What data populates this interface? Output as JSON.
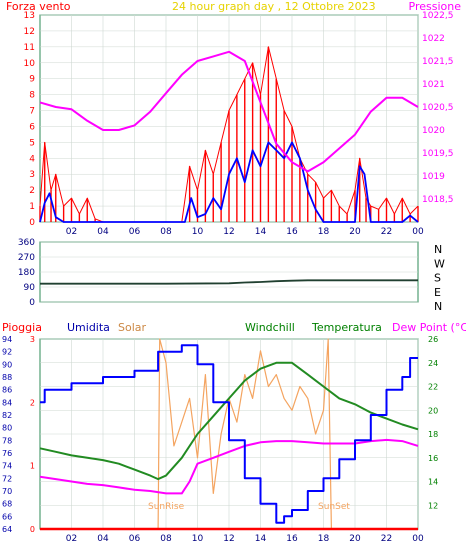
{
  "colors": {
    "bg": "#ffffff",
    "plot_bg": "#ffffff",
    "grid": "#cfd8d2",
    "axis_green": "#2e8b57",
    "title": "#e6d200",
    "wind": "#ff0000",
    "gust": "#0000ff",
    "pressure": "#ff00ff",
    "direction": "#204030",
    "rain": "#ff0000",
    "humidity": "#0000ff",
    "solar": "#f4a460",
    "windchill": "#00aa00",
    "temperature": "#228b22",
    "dewpoint": "#ff00ff"
  },
  "chart_data": [
    {
      "type": "line",
      "title": "24 hour graph day , 12 Ottobre 2023",
      "left_label": "Forza vento",
      "right_label": "Pressione",
      "x_ticks": [
        "02",
        "04",
        "06",
        "08",
        "10",
        "12",
        "14",
        "16",
        "18",
        "20",
        "22",
        "00"
      ],
      "ylim_left": [
        0,
        13
      ],
      "yticks_left": [
        "0",
        "1",
        "2",
        "3",
        "4",
        "5",
        "6",
        "7",
        "8",
        "9",
        "10",
        "11",
        "12",
        "13"
      ],
      "ylim_right": [
        1018.0,
        1022.5
      ],
      "yticks_right": [
        "1018,5",
        "1019",
        "1019,5",
        "1020",
        "1020,5",
        "1021",
        "1021,5",
        "1022",
        "1022,5"
      ],
      "series": [
        {
          "key": "wind",
          "axis": "left",
          "x": [
            0.0,
            0.3,
            0.7,
            1.0,
            1.5,
            2.0,
            2.5,
            3.0,
            3.5,
            4.0,
            5.0,
            6.0,
            7.0,
            8.0,
            9.0,
            9.5,
            10.0,
            10.5,
            11.0,
            11.5,
            12.0,
            12.5,
            13.0,
            13.5,
            14.0,
            14.5,
            15.0,
            15.5,
            16.0,
            16.5,
            17.0,
            17.5,
            18.0,
            18.5,
            19.0,
            19.5,
            20.0,
            20.3,
            20.7,
            21.0,
            21.5,
            22.0,
            22.5,
            23.0,
            23.5,
            24.0
          ],
          "y": [
            1.0,
            5.0,
            2.0,
            3.0,
            1.0,
            1.5,
            0.5,
            1.5,
            0.2,
            0.0,
            0.0,
            0.0,
            0.0,
            0.0,
            0.0,
            3.5,
            2.0,
            4.5,
            3.0,
            5.0,
            7.0,
            8.0,
            9.0,
            10.0,
            8.0,
            11.0,
            9.0,
            7.0,
            6.0,
            4.0,
            3.0,
            2.5,
            1.5,
            2.0,
            1.0,
            0.5,
            2.0,
            4.0,
            1.5,
            1.0,
            0.8,
            1.5,
            0.5,
            1.5,
            0.5,
            1.0
          ]
        },
        {
          "key": "gust",
          "axis": "left",
          "x": [
            0.0,
            0.3,
            0.6,
            1.0,
            1.5,
            2.0,
            3.0,
            4.0,
            6.0,
            8.0,
            9.2,
            9.6,
            10.0,
            10.5,
            11.0,
            11.5,
            12.0,
            12.5,
            13.0,
            13.5,
            14.0,
            14.5,
            15.0,
            15.5,
            16.0,
            16.5,
            17.0,
            17.5,
            18.0,
            19.0,
            20.0,
            20.3,
            20.6,
            21.0,
            22.0,
            23.0,
            23.5,
            24.0
          ],
          "y": [
            0.0,
            1.2,
            1.8,
            0.3,
            0.0,
            0.0,
            0.0,
            0.0,
            0.0,
            0.0,
            0.0,
            1.5,
            0.3,
            0.5,
            1.5,
            0.8,
            3.0,
            4.0,
            2.5,
            4.5,
            3.5,
            5.0,
            4.5,
            4.0,
            5.0,
            4.0,
            2.0,
            0.8,
            0.0,
            0.0,
            0.0,
            3.5,
            3.0,
            0.0,
            0.0,
            0.0,
            0.4,
            0.0
          ]
        },
        {
          "key": "pressure",
          "axis": "right",
          "x": [
            0.0,
            1.0,
            2.0,
            3.0,
            4.0,
            5.0,
            6.0,
            7.0,
            8.0,
            9.0,
            10.0,
            11.0,
            12.0,
            13.0,
            14.0,
            15.0,
            16.0,
            17.0,
            18.0,
            19.0,
            20.0,
            21.0,
            22.0,
            23.0,
            24.0
          ],
          "y": [
            1020.6,
            1020.5,
            1020.45,
            1020.2,
            1020.0,
            1020.0,
            1020.1,
            1020.4,
            1020.8,
            1021.2,
            1021.5,
            1021.6,
            1021.7,
            1021.5,
            1020.6,
            1019.7,
            1019.3,
            1019.1,
            1019.3,
            1019.6,
            1019.9,
            1020.4,
            1020.7,
            1020.7,
            1020.5
          ]
        }
      ]
    },
    {
      "type": "line",
      "title": "",
      "x_ticks": [],
      "yticks_left": [
        "0",
        "90",
        "180",
        "270",
        "360"
      ],
      "ylim": [
        0,
        360
      ],
      "yticks_right": [
        "N",
        "W",
        "S",
        "E",
        "N"
      ],
      "series": [
        {
          "key": "direction",
          "x": [
            0,
            4,
            8,
            12,
            13,
            14,
            15,
            16,
            17,
            18,
            20,
            24
          ],
          "y": [
            110,
            110,
            110,
            112,
            117,
            120,
            125,
            128,
            130,
            130,
            130,
            130
          ]
        }
      ]
    },
    {
      "type": "line",
      "title": "",
      "legend": [
        "Pioggia",
        "Umidita",
        "Solar",
        "Windchill",
        "Temperatura",
        "Dew Point (°C)"
      ],
      "x_ticks": [
        "02",
        "04",
        "06",
        "08",
        "10",
        "12",
        "14",
        "16",
        "18",
        "20",
        "22",
        "00"
      ],
      "ylim_left": [
        64,
        94
      ],
      "yticks_left": [
        "64",
        "66",
        "68",
        "70",
        "72",
        "74",
        "76",
        "78",
        "80",
        "82",
        "84",
        "86",
        "88",
        "90",
        "92",
        "94"
      ],
      "ylim_rain": [
        0,
        3
      ],
      "yticks_rain": [
        "0",
        "1",
        "2",
        "3"
      ],
      "ylim_right": [
        10,
        26
      ],
      "yticks_right": [
        "12",
        "14",
        "16",
        "18",
        "20",
        "22",
        "24",
        "26"
      ],
      "annotations": [
        "SunRise",
        "SunSet"
      ],
      "series": [
        {
          "key": "rain",
          "axis": "rain",
          "x": [
            0,
            24
          ],
          "y": [
            0,
            0
          ]
        },
        {
          "key": "humidity",
          "axis": "left",
          "x": [
            0.0,
            0.3,
            1.0,
            2.0,
            3.0,
            4.0,
            5.0,
            6.0,
            7.0,
            7.5,
            8.0,
            9.0,
            9.5,
            10.0,
            11.0,
            12.0,
            13.0,
            14.0,
            15.0,
            15.5,
            16.0,
            17.0,
            18.0,
            19.0,
            20.0,
            21.0,
            22.0,
            23.0,
            23.5,
            24.0
          ],
          "y": [
            84,
            86,
            86,
            87,
            87,
            88,
            88,
            89,
            89,
            92,
            92,
            93,
            93,
            90,
            84,
            78,
            72,
            68,
            65,
            66,
            67,
            70,
            72,
            75,
            78,
            82,
            86,
            88,
            91,
            91
          ]
        },
        {
          "key": "temperature",
          "axis": "right",
          "x": [
            0.0,
            1.0,
            2.0,
            3.0,
            4.0,
            5.0,
            6.0,
            7.0,
            7.5,
            8.0,
            9.0,
            10.0,
            11.0,
            12.0,
            13.0,
            14.0,
            15.0,
            16.0,
            17.0,
            18.0,
            19.0,
            20.0,
            21.0,
            22.0,
            23.0,
            24.0
          ],
          "y": [
            16.8,
            16.5,
            16.2,
            16.0,
            15.8,
            15.5,
            15.0,
            14.5,
            14.2,
            14.5,
            16.0,
            18.0,
            19.5,
            21.0,
            22.5,
            23.5,
            24.0,
            24.0,
            23.0,
            22.0,
            21.0,
            20.5,
            19.8,
            19.3,
            18.8,
            18.4
          ]
        },
        {
          "key": "dewpoint",
          "axis": "right",
          "x": [
            0.0,
            1.0,
            2.0,
            3.0,
            4.0,
            5.0,
            6.0,
            7.0,
            8.0,
            9.0,
            9.5,
            10.0,
            11.0,
            12.0,
            13.0,
            14.0,
            15.0,
            16.0,
            17.0,
            18.0,
            19.0,
            20.0,
            21.0,
            22.0,
            23.0,
            24.0
          ],
          "y": [
            14.4,
            14.2,
            14.0,
            13.8,
            13.7,
            13.5,
            13.3,
            13.2,
            13.0,
            13.0,
            14.0,
            15.5,
            16.0,
            16.5,
            17.0,
            17.3,
            17.4,
            17.4,
            17.3,
            17.2,
            17.2,
            17.2,
            17.4,
            17.5,
            17.4,
            17.0
          ]
        },
        {
          "key": "solar",
          "axis": "right",
          "x": [
            7.5,
            7.6,
            8.0,
            8.5,
            9.0,
            9.5,
            10.0,
            10.5,
            11.0,
            11.5,
            12.0,
            12.5,
            13.0,
            13.5,
            14.0,
            14.5,
            15.0,
            15.5,
            16.0,
            16.5,
            17.0,
            17.5,
            18.0,
            18.3,
            18.5
          ],
          "y": [
            10.0,
            26.0,
            24.0,
            17.0,
            19.0,
            21.0,
            16.0,
            23.0,
            13.0,
            18.0,
            21.0,
            19.0,
            23.0,
            21.0,
            25.0,
            22.0,
            23.0,
            21.0,
            20.0,
            22.0,
            21.0,
            18.0,
            20.0,
            26.0,
            10.0
          ]
        }
      ]
    }
  ]
}
